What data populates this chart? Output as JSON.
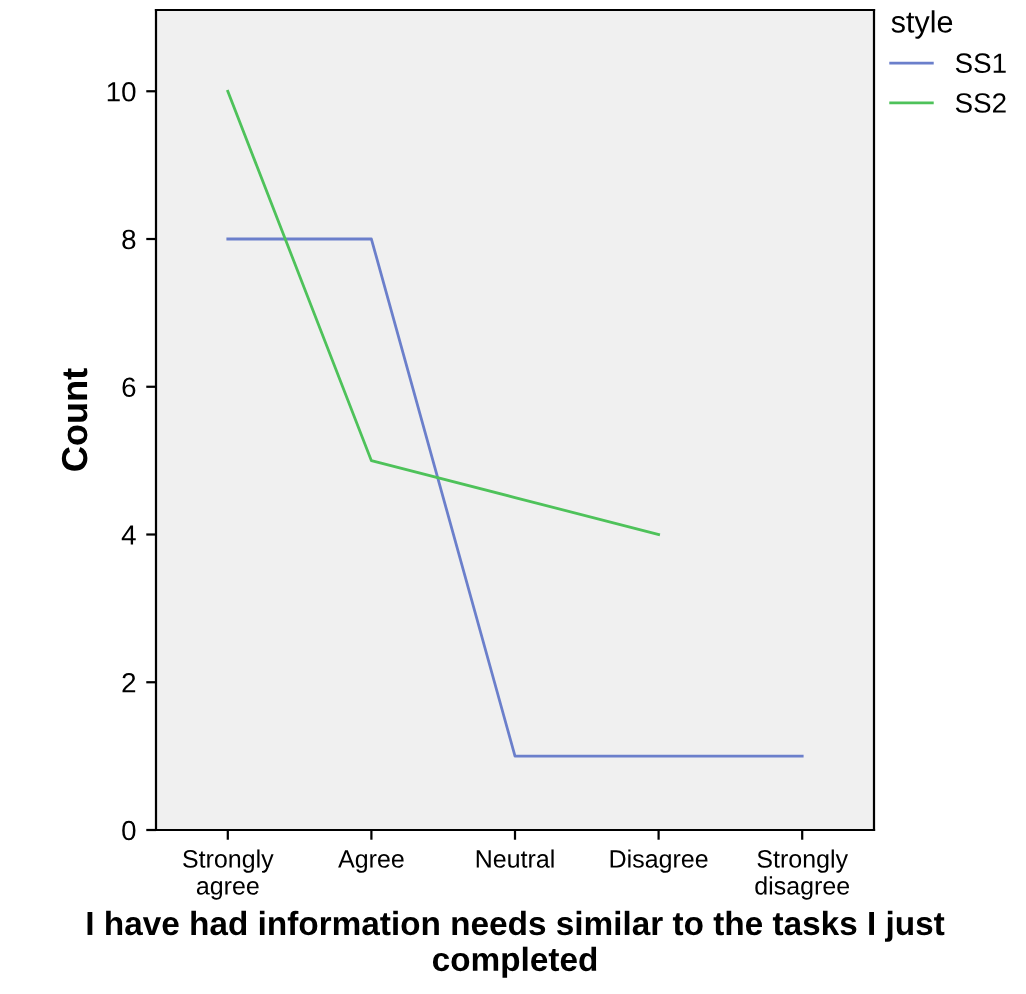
{
  "chart_data": {
    "type": "line",
    "xlabel": "I have had information needs similar to the tasks I just completed",
    "ylabel": "Count",
    "legend_title": "style",
    "categories": [
      "Strongly agree",
      "Agree",
      "Neutral",
      "Disagree",
      "Strongly disagree"
    ],
    "series": [
      {
        "name": "SS1",
        "color": "#6b7fcb",
        "values": [
          8,
          8,
          1,
          1,
          1
        ]
      },
      {
        "name": "SS2",
        "color": "#4ec25a",
        "values": [
          10,
          5,
          4.5,
          4,
          null
        ]
      }
    ],
    "ylim": [
      0,
      11.1
    ],
    "yticks": [
      0,
      2,
      4,
      6,
      8,
      10
    ],
    "grid": false,
    "legend": "top right",
    "marker": "none",
    "line_style": "solid"
  }
}
